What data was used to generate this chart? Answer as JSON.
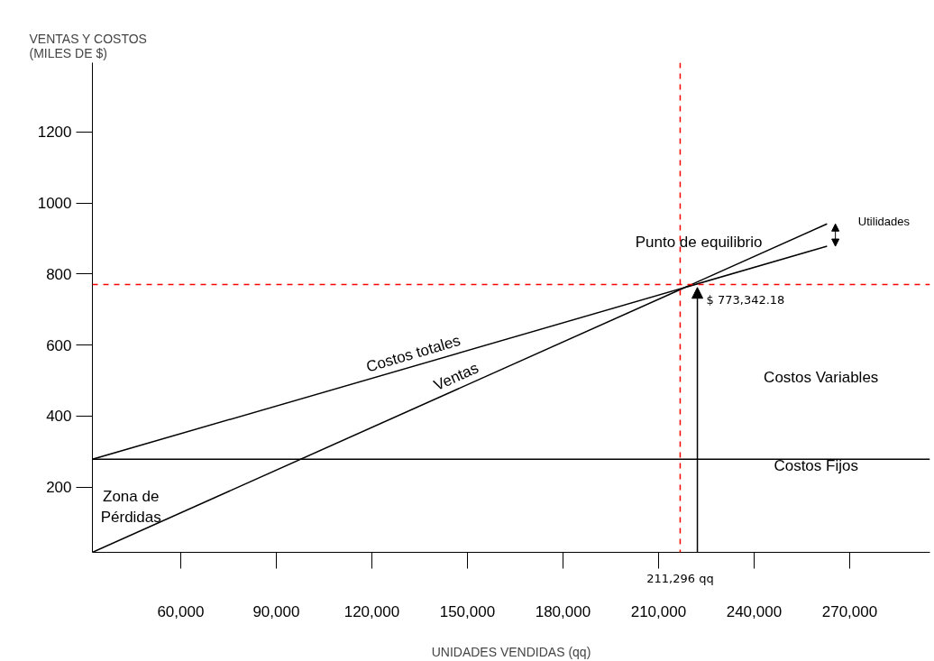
{
  "chart_data": {
    "type": "line",
    "xlabel": "UNIDADES VENDIDAS (qq)",
    "ylabel": "VENTAS Y COSTOS\n(MILES DE $)",
    "xlim": [
      32300,
      295200
    ],
    "ylim": [
      16,
      1395
    ],
    "xticks": [
      {
        "value": 60000,
        "label": "60,000"
      },
      {
        "value": 90000,
        "label": "90,000"
      },
      {
        "value": 120000,
        "label": "120,000"
      },
      {
        "value": 150000,
        "label": "150,000"
      },
      {
        "value": 180000,
        "label": "180,000"
      },
      {
        "value": 210000,
        "label": "210,000"
      },
      {
        "value": 240000,
        "label": "240,000"
      },
      {
        "value": 270000,
        "label": "270,000"
      }
    ],
    "yticks": [
      200,
      400,
      600,
      800,
      1000,
      1200
    ],
    "series": [
      {
        "color": "#000000",
        "x": [
          32300,
          295200
        ],
        "values": [
          278,
          278
        ]
      },
      {
        "name": "Costos totales",
        "color": "#000000",
        "x": [
          32300,
          262900
        ],
        "values": [
          278,
          878
        ]
      },
      {
        "name": "Ventas",
        "color": "#000000",
        "x": [
          32300,
          262900
        ],
        "values": [
          16,
          941
        ]
      }
    ],
    "ref_lines": [
      {
        "axis": "x",
        "value": 216800,
        "label": "211,296 qq",
        "color": "#ff0000",
        "line_style": "dashed"
      },
      {
        "axis": "y",
        "value": 770,
        "color": "#ff0000",
        "line_style": "dashed"
      }
    ],
    "annotations": [
      "Punto de equilibrio",
      {
        "text": "$ 773,342.18",
        "x": 222200,
        "y": 762
      },
      "Utilidades",
      "Costos Variables",
      "Costos Fijos",
      "Zona de\nPérdidas"
    ],
    "grid": false,
    "marker": "none",
    "line_style": "solid"
  }
}
